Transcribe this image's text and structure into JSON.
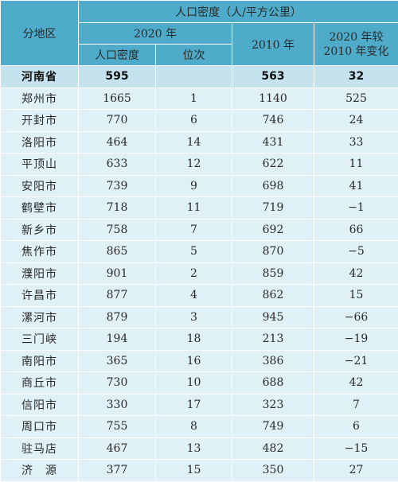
{
  "header": {
    "region_label": "分地区",
    "title": "人口密度（人/平方公里）",
    "year2020": "2020 年",
    "density_label": "人口密度",
    "rank_label": "位次",
    "year2010": "2010 年",
    "change_label_line1": "2020 年较",
    "change_label_line2": "2010 年变化"
  },
  "rows": [
    {
      "region": "河南省",
      "d2020": "595",
      "rank": "",
      "d2010": "563",
      "change": "32",
      "is_total": true
    },
    {
      "region": "郑州市",
      "d2020": "1665",
      "rank": "1",
      "d2010": "1140",
      "change": "525"
    },
    {
      "region": "开封市",
      "d2020": "770",
      "rank": "6",
      "d2010": "746",
      "change": "24"
    },
    {
      "region": "洛阳市",
      "d2020": "464",
      "rank": "14",
      "d2010": "431",
      "change": "33"
    },
    {
      "region": "平顶山",
      "d2020": "633",
      "rank": "12",
      "d2010": "622",
      "change": "11"
    },
    {
      "region": "安阳市",
      "d2020": "739",
      "rank": "9",
      "d2010": "698",
      "change": "41"
    },
    {
      "region": "鹤壁市",
      "d2020": "718",
      "rank": "11",
      "d2010": "719",
      "change": "−1"
    },
    {
      "region": "新乡市",
      "d2020": "758",
      "rank": "7",
      "d2010": "692",
      "change": "66"
    },
    {
      "region": "焦作市",
      "d2020": "865",
      "rank": "5",
      "d2010": "870",
      "change": "−5"
    },
    {
      "region": "濮阳市",
      "d2020": "901",
      "rank": "2",
      "d2010": "859",
      "change": "42"
    },
    {
      "region": "许昌市",
      "d2020": "877",
      "rank": "4",
      "d2010": "862",
      "change": "15"
    },
    {
      "region": "漯河市",
      "d2020": "879",
      "rank": "3",
      "d2010": "945",
      "change": "−66"
    },
    {
      "region": "三门峡",
      "d2020": "194",
      "rank": "18",
      "d2010": "213",
      "change": "−19"
    },
    {
      "region": "南阳市",
      "d2020": "365",
      "rank": "16",
      "d2010": "386",
      "change": "−21"
    },
    {
      "region": "商丘市",
      "d2020": "730",
      "rank": "10",
      "d2010": "688",
      "change": "42"
    },
    {
      "region": "信阳市",
      "d2020": "330",
      "rank": "17",
      "d2010": "323",
      "change": "7"
    },
    {
      "region": "周口市",
      "d2020": "755",
      "rank": "8",
      "d2010": "749",
      "change": "6"
    },
    {
      "region": "驻马店",
      "d2020": "467",
      "rank": "13",
      "d2010": "482",
      "change": "−15"
    },
    {
      "region": "济　源",
      "d2020": "377",
      "rank": "15",
      "d2010": "350",
      "change": "27"
    }
  ]
}
